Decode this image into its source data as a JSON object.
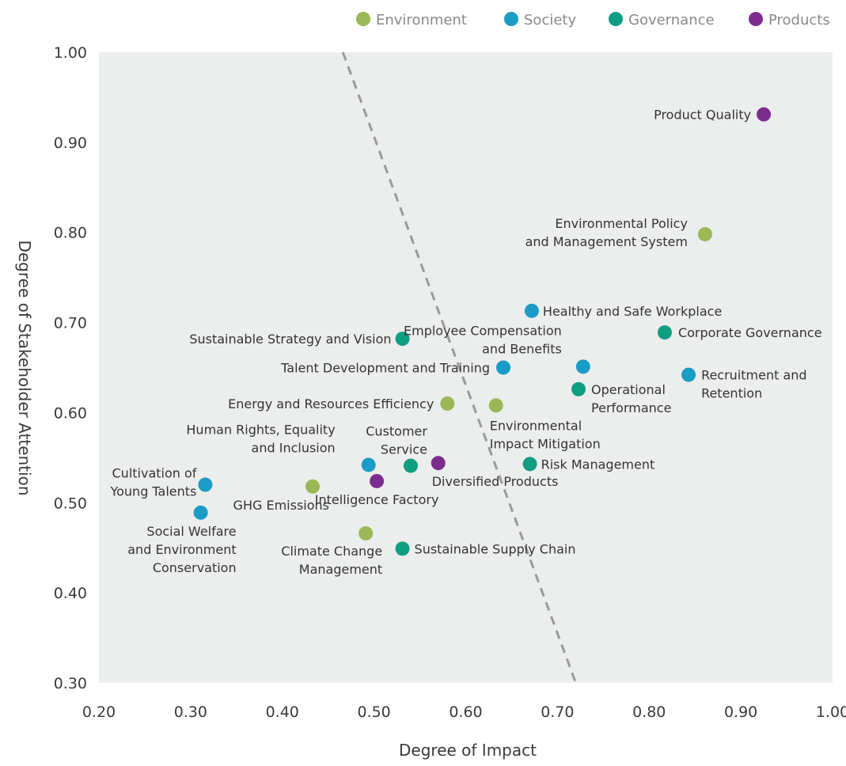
{
  "colors": {
    "Environment": "#9ab855",
    "Society": "#1a9cc7",
    "Governance": "#0f9e82",
    "Products": "#7b2d8e",
    "plot_bg": "#eceded",
    "divider": "#9a9a9a"
  },
  "legend": [
    {
      "key": "Environment",
      "label": "Environment"
    },
    {
      "key": "Society",
      "label": "Society"
    },
    {
      "key": "Governance",
      "label": "Governance"
    },
    {
      "key": "Products",
      "label": "Products"
    }
  ],
  "chart_data": {
    "type": "scatter",
    "title": "",
    "xlabel": "Degree of Impact",
    "ylabel": "Degree of Stakeholder Attention",
    "xlim": [
      0.2,
      1.0
    ],
    "ylim": [
      0.3,
      1.0
    ],
    "xticks": [
      "0.20",
      "0.30",
      "0.40",
      "0.50",
      "0.60",
      "0.70",
      "0.80",
      "0.90",
      "1.00"
    ],
    "yticks": [
      "0.30",
      "0.40",
      "0.50",
      "0.60",
      "0.70",
      "0.80",
      "0.90",
      "1.00"
    ],
    "grid": false,
    "legend_position": "top-right",
    "divider_line": {
      "style": "dashed",
      "from": {
        "x": 0.466,
        "y": 1.0
      },
      "to": {
        "x": 0.72,
        "y": 0.3
      }
    },
    "points": [
      {
        "lines": [
          "Product Quality"
        ],
        "x": 0.925,
        "y": 0.931,
        "category": "Products",
        "anchor": "end"
      },
      {
        "lines": [
          "Environmental Policy",
          "and Management System"
        ],
        "x": 0.861,
        "y": 0.798,
        "category": "Environment",
        "anchor": "end"
      },
      {
        "lines": [
          "Healthy and Safe Workplace"
        ],
        "x": 0.672,
        "y": 0.713,
        "category": "Society",
        "anchor": "start"
      },
      {
        "lines": [
          "Sustainable Strategy and Vision"
        ],
        "x": 0.531,
        "y": 0.682,
        "category": "Governance",
        "anchor": "end"
      },
      {
        "lines": [
          "Corporate Governance"
        ],
        "x": 0.817,
        "y": 0.689,
        "category": "Governance",
        "anchor": "start"
      },
      {
        "lines": [
          "Employee Compensation",
          "and Benefits"
        ],
        "x": 0.728,
        "y": 0.651,
        "category": "Society",
        "anchor": "end"
      },
      {
        "lines": [
          "Talent Development and Training"
        ],
        "x": 0.641,
        "y": 0.65,
        "category": "Society",
        "anchor": "end"
      },
      {
        "lines": [
          "Recruitment and",
          "Retention"
        ],
        "x": 0.843,
        "y": 0.642,
        "category": "Society",
        "anchor": "start"
      },
      {
        "lines": [
          "Operational",
          "Performance"
        ],
        "x": 0.723,
        "y": 0.626,
        "category": "Governance",
        "anchor": "start"
      },
      {
        "lines": [
          "Energy and Resources Efficiency"
        ],
        "x": 0.58,
        "y": 0.61,
        "category": "Environment",
        "anchor": "end"
      },
      {
        "lines": [
          "Environmental",
          "Impact Mitigation"
        ],
        "x": 0.633,
        "y": 0.608,
        "category": "Environment",
        "anchor": "start"
      },
      {
        "lines": [
          "Human Rights, Equality",
          "and Inclusion"
        ],
        "x": 0.494,
        "y": 0.542,
        "category": "Society",
        "anchor": "end"
      },
      {
        "lines": [
          "Customer",
          "Service"
        ],
        "x": 0.54,
        "y": 0.541,
        "category": "Governance",
        "anchor": "end"
      },
      {
        "lines": [
          "Diversified Products"
        ],
        "x": 0.57,
        "y": 0.544,
        "category": "Products",
        "anchor": "start"
      },
      {
        "lines": [
          "Risk Management"
        ],
        "x": 0.67,
        "y": 0.543,
        "category": "Governance",
        "anchor": "start"
      },
      {
        "lines": [
          "Cultivation of",
          "Young Talents"
        ],
        "x": 0.316,
        "y": 0.52,
        "category": "Society",
        "anchor": "end"
      },
      {
        "lines": [
          "GHG Emissions"
        ],
        "x": 0.433,
        "y": 0.518,
        "category": "Environment",
        "anchor": "end"
      },
      {
        "lines": [
          "Intelligence Factory"
        ],
        "x": 0.503,
        "y": 0.524,
        "category": "Products",
        "anchor": "middle"
      },
      {
        "lines": [
          "Social Welfare",
          "and Environment",
          "Conservation"
        ],
        "x": 0.311,
        "y": 0.489,
        "category": "Society",
        "anchor": "end"
      },
      {
        "lines": [
          "Climate Change",
          "Management"
        ],
        "x": 0.491,
        "y": 0.466,
        "category": "Environment",
        "anchor": "end"
      },
      {
        "lines": [
          "Sustainable Supply Chain"
        ],
        "x": 0.531,
        "y": 0.449,
        "category": "Governance",
        "anchor": "start"
      }
    ]
  }
}
